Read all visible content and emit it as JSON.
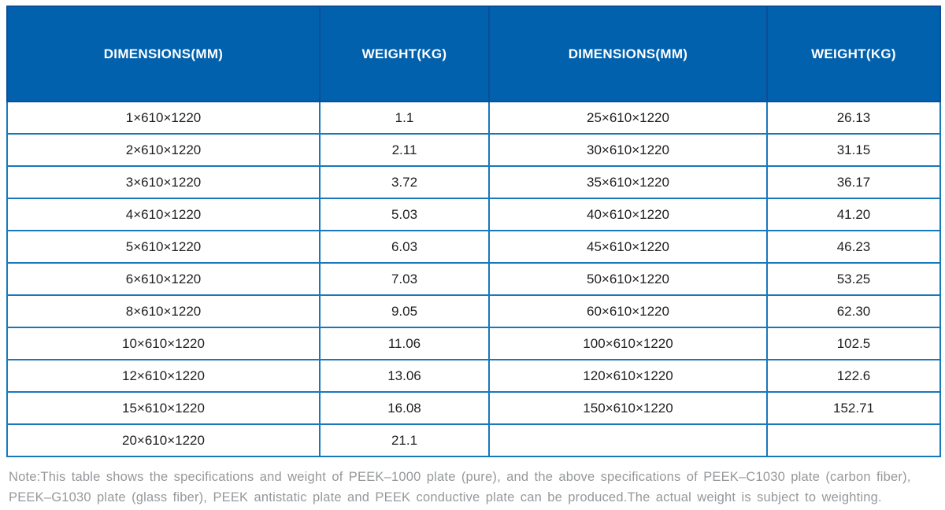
{
  "colors": {
    "header_bg": "#0161ad",
    "header_border": "#0a4f97",
    "grid_border": "#1778bc",
    "cell_text": "#1f1f1f",
    "header_text": "#ffffff",
    "note_text": "#95989b",
    "page_bg": "#ffffff"
  },
  "table": {
    "headers": [
      "DIMENSIONS(MM)",
      "WEIGHT(KG)",
      "DIMENSIONS(MM)",
      "WEIGHT(KG)"
    ],
    "rows": [
      [
        "1×610×1220",
        "1.1",
        "25×610×1220",
        "26.13"
      ],
      [
        "2×610×1220",
        "2.11",
        "30×610×1220",
        "31.15"
      ],
      [
        "3×610×1220",
        "3.72",
        "35×610×1220",
        "36.17"
      ],
      [
        "4×610×1220",
        "5.03",
        "40×610×1220",
        "41.20"
      ],
      [
        "5×610×1220",
        "6.03",
        "45×610×1220",
        "46.23"
      ],
      [
        "6×610×1220",
        "7.03",
        "50×610×1220",
        "53.25"
      ],
      [
        "8×610×1220",
        "9.05",
        "60×610×1220",
        "62.30"
      ],
      [
        "10×610×1220",
        "11.06",
        "100×610×1220",
        "102.5"
      ],
      [
        "12×610×1220",
        "13.06",
        "120×610×1220",
        "122.6"
      ],
      [
        "15×610×1220",
        "16.08",
        "150×610×1220",
        "152.71"
      ],
      [
        "20×610×1220",
        "21.1",
        "",
        ""
      ]
    ]
  },
  "note": {
    "line1": "Note:This table shows the specifications and weight of PEEK–1000 plate (pure), and the above specifications of PEEK–C1030 plate (carbon fiber),",
    "line2": "PEEK–G1030 plate (glass fiber), PEEK antistatic plate and PEEK conductive plate can be produced.The actual weight is subject to weighting."
  }
}
